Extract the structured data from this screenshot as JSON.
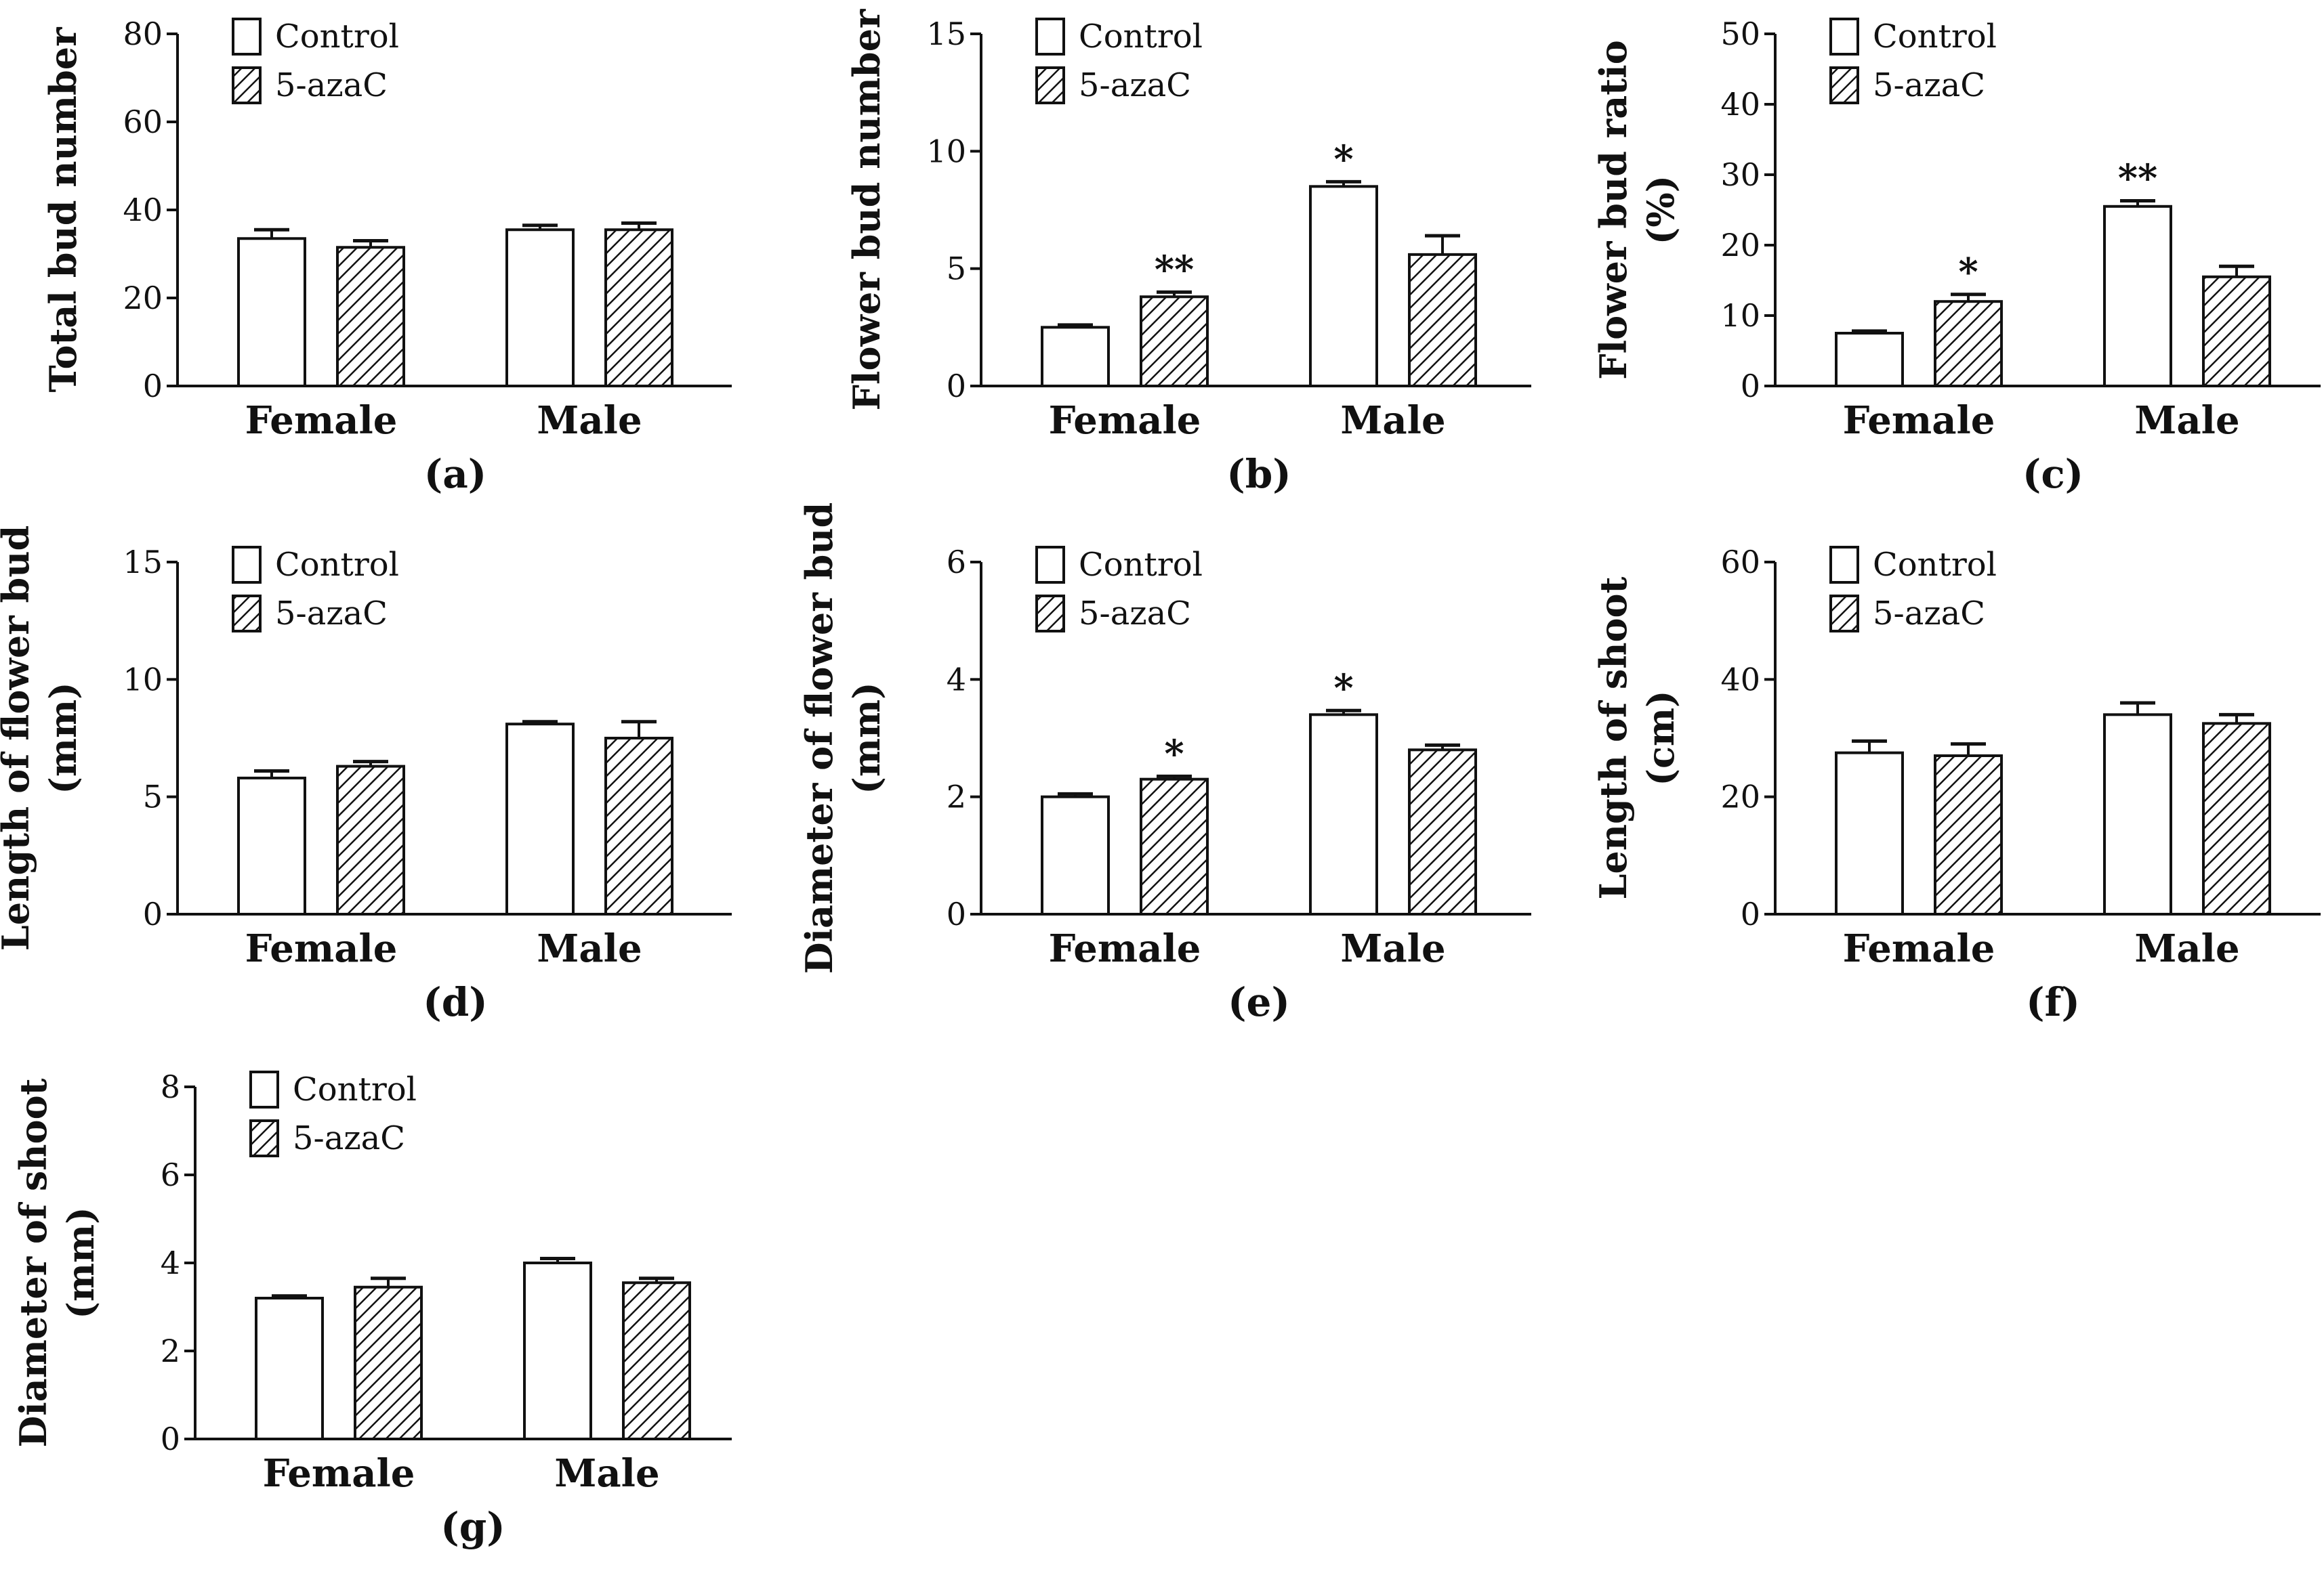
{
  "figure": {
    "legend": [
      "Control",
      "5-azaC"
    ],
    "categories": [
      "Female",
      "Male"
    ]
  },
  "chart_data": [
    {
      "id": "a",
      "type": "bar",
      "panel_label": "(a)",
      "title": "",
      "xlabel": "",
      "ylabel": [
        "Total bud number"
      ],
      "ylim": [
        0,
        80
      ],
      "yticks": [
        0,
        20,
        40,
        60,
        80
      ],
      "categories": [
        "Female",
        "Male"
      ],
      "series": [
        {
          "name": "Control",
          "pattern": "open",
          "values": [
            33.5,
            35.5
          ],
          "errors": [
            2.0,
            1.0
          ],
          "significance": [
            "",
            ""
          ]
        },
        {
          "name": "5-azaC",
          "pattern": "hatched",
          "values": [
            31.5,
            35.5
          ],
          "errors": [
            1.5,
            1.5
          ],
          "significance": [
            "",
            ""
          ]
        }
      ]
    },
    {
      "id": "b",
      "type": "bar",
      "panel_label": "(b)",
      "title": "",
      "xlabel": "",
      "ylabel": [
        "Flower bud number"
      ],
      "ylim": [
        0,
        15
      ],
      "yticks": [
        0,
        5,
        10,
        15
      ],
      "categories": [
        "Female",
        "Male"
      ],
      "series": [
        {
          "name": "Control",
          "pattern": "open",
          "values": [
            2.5,
            8.5
          ],
          "errors": [
            0.1,
            0.2
          ],
          "significance": [
            "",
            "*"
          ]
        },
        {
          "name": "5-azaC",
          "pattern": "hatched",
          "values": [
            3.8,
            5.6
          ],
          "errors": [
            0.2,
            0.8
          ],
          "significance": [
            "**",
            ""
          ]
        }
      ]
    },
    {
      "id": "c",
      "type": "bar",
      "panel_label": "(c)",
      "title": "",
      "xlabel": "",
      "ylabel": [
        "Flower bud ratio",
        "(%)"
      ],
      "ylim": [
        0,
        50
      ],
      "yticks": [
        0,
        10,
        20,
        30,
        40,
        50
      ],
      "categories": [
        "Female",
        "Male"
      ],
      "series": [
        {
          "name": "Control",
          "pattern": "open",
          "values": [
            7.5,
            25.5
          ],
          "errors": [
            0.3,
            0.8
          ],
          "significance": [
            "",
            "**"
          ]
        },
        {
          "name": "5-azaC",
          "pattern": "hatched",
          "values": [
            12.0,
            15.5
          ],
          "errors": [
            1.0,
            1.5
          ],
          "significance": [
            "*",
            ""
          ]
        }
      ]
    },
    {
      "id": "d",
      "type": "bar",
      "panel_label": "(d)",
      "title": "",
      "xlabel": "",
      "ylabel": [
        "Length of flower bud",
        "(mm)"
      ],
      "ylim": [
        0,
        15
      ],
      "yticks": [
        0,
        5,
        10,
        15
      ],
      "categories": [
        "Female",
        "Male"
      ],
      "series": [
        {
          "name": "Control",
          "pattern": "open",
          "values": [
            5.8,
            8.1
          ],
          "errors": [
            0.3,
            0.1
          ],
          "significance": [
            "",
            ""
          ]
        },
        {
          "name": "5-azaC",
          "pattern": "hatched",
          "values": [
            6.3,
            7.5
          ],
          "errors": [
            0.2,
            0.7
          ],
          "significance": [
            "",
            ""
          ]
        }
      ]
    },
    {
      "id": "e",
      "type": "bar",
      "panel_label": "(e)",
      "title": "",
      "xlabel": "",
      "ylabel": [
        "Diameter of flower bud",
        "(mm)"
      ],
      "ylim": [
        0,
        6
      ],
      "yticks": [
        0,
        2,
        4,
        6
      ],
      "categories": [
        "Female",
        "Male"
      ],
      "series": [
        {
          "name": "Control",
          "pattern": "open",
          "values": [
            2.0,
            3.4
          ],
          "errors": [
            0.05,
            0.07
          ],
          "significance": [
            "",
            "*"
          ]
        },
        {
          "name": "5-azaC",
          "pattern": "hatched",
          "values": [
            2.3,
            2.8
          ],
          "errors": [
            0.05,
            0.08
          ],
          "significance": [
            "*",
            ""
          ]
        }
      ]
    },
    {
      "id": "f",
      "type": "bar",
      "panel_label": "(f)",
      "title": "",
      "xlabel": "",
      "ylabel": [
        "Length of shoot",
        "(cm)"
      ],
      "ylim": [
        0,
        60
      ],
      "yticks": [
        0,
        20,
        40,
        60
      ],
      "categories": [
        "Female",
        "Male"
      ],
      "series": [
        {
          "name": "Control",
          "pattern": "open",
          "values": [
            27.5,
            34.0
          ],
          "errors": [
            2.0,
            2.0
          ],
          "significance": [
            "",
            ""
          ]
        },
        {
          "name": "5-azaC",
          "pattern": "hatched",
          "values": [
            27.0,
            32.5
          ],
          "errors": [
            2.0,
            1.5
          ],
          "significance": [
            "",
            ""
          ]
        }
      ]
    },
    {
      "id": "g",
      "type": "bar",
      "panel_label": "(g)",
      "title": "",
      "xlabel": "",
      "ylabel": [
        "Diameter of shoot",
        "(mm)"
      ],
      "ylim": [
        0,
        8
      ],
      "yticks": [
        0,
        2,
        4,
        6,
        8
      ],
      "categories": [
        "Female",
        "Male"
      ],
      "series": [
        {
          "name": "Control",
          "pattern": "open",
          "values": [
            3.2,
            4.0
          ],
          "errors": [
            0.05,
            0.1
          ],
          "significance": [
            "",
            ""
          ]
        },
        {
          "name": "5-azaC",
          "pattern": "hatched",
          "values": [
            3.45,
            3.55
          ],
          "errors": [
            0.2,
            0.1
          ],
          "significance": [
            "",
            ""
          ]
        }
      ]
    }
  ]
}
